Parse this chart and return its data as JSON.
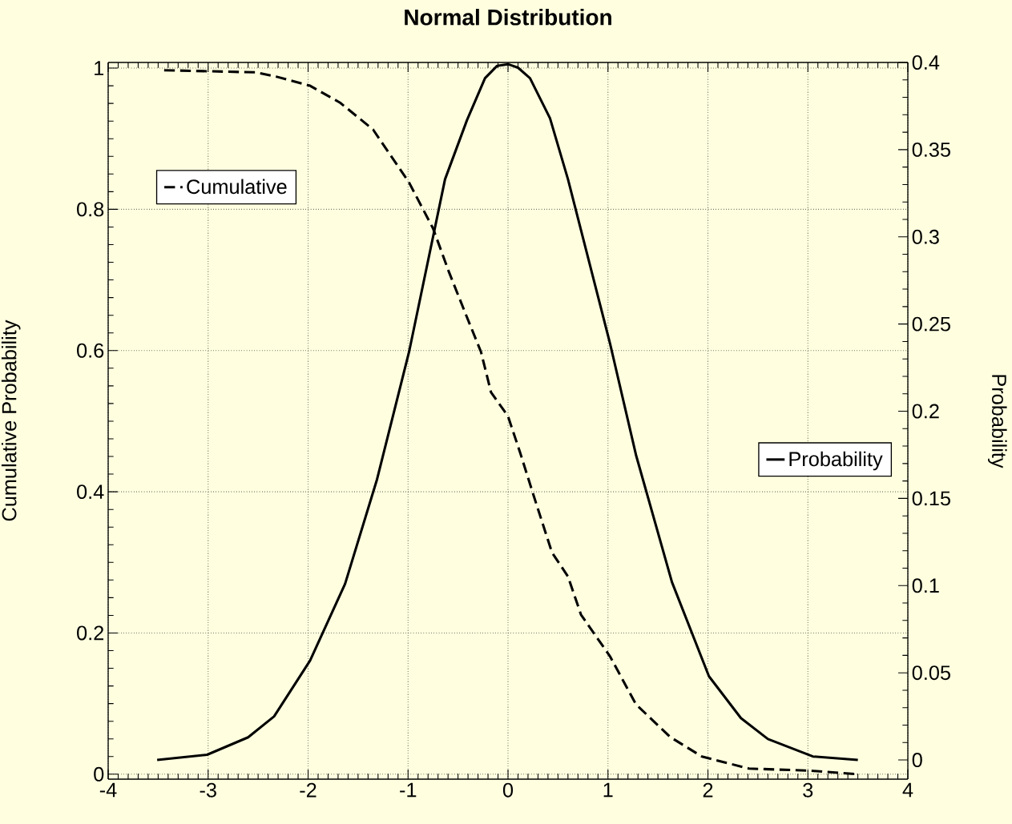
{
  "chart_data": {
    "type": "line",
    "title": "Normal Distribution",
    "ylabel": "Cumulative Probability",
    "y2label": "Probability",
    "xlim": [
      -4,
      4
    ],
    "xticks": [
      -4,
      -3,
      -2,
      -1,
      0,
      1,
      2,
      3,
      4
    ],
    "ylim": [
      -0.007,
      1.008
    ],
    "yticks": [
      0,
      0.2,
      0.4,
      0.6,
      0.8,
      1
    ],
    "y2lim": [
      -0.011,
      0.4
    ],
    "y2ticks": [
      0,
      0.05,
      0.1,
      0.15,
      0.2,
      0.25,
      0.3,
      0.35,
      0.4
    ],
    "grid": true,
    "legend": "top left",
    "marker": "none",
    "series": [
      {
        "name": "Cumulative",
        "color": "#000000",
        "line_style": "dashed",
        "x": [
          -3.44,
          -2.52,
          -2.32,
          -1.98,
          -1.68,
          -1.35,
          -0.99,
          -0.75,
          -0.59,
          -0.43,
          -0.27,
          -0.17,
          0,
          0.12,
          0.26,
          0.44,
          0.6,
          0.73,
          1.02,
          1.28,
          1.62,
          1.94,
          2.41,
          3.02,
          3.5
        ],
        "values": [
          0.997,
          0.994,
          0.988,
          0.975,
          0.951,
          0.913,
          0.838,
          0.773,
          0.711,
          0.654,
          0.598,
          0.541,
          0.507,
          0.456,
          0.393,
          0.314,
          0.28,
          0.226,
          0.167,
          0.099,
          0.053,
          0.025,
          0.008,
          0.005,
          0
        ]
      },
      {
        "name": "Probability",
        "color": "#000000",
        "line_style": "solid",
        "axis": "y2",
        "x": [
          -3.51,
          -3.01,
          -2.6,
          -2.34,
          -1.98,
          -1.63,
          -1.31,
          -0.99,
          -0.63,
          -0.41,
          -0.23,
          -0.11,
          0,
          0.1,
          0.22,
          0.42,
          0.6,
          1.02,
          1.28,
          1.64,
          2.01,
          2.33,
          2.6,
          3.05,
          3.5
        ],
        "values": [
          0,
          0.003,
          0.013,
          0.025,
          0.057,
          0.101,
          0.161,
          0.234,
          0.333,
          0.367,
          0.391,
          0.398,
          0.399,
          0.397,
          0.391,
          0.368,
          0.333,
          0.239,
          0.175,
          0.102,
          0.048,
          0.024,
          0.012,
          0.002,
          0
        ]
      }
    ]
  }
}
